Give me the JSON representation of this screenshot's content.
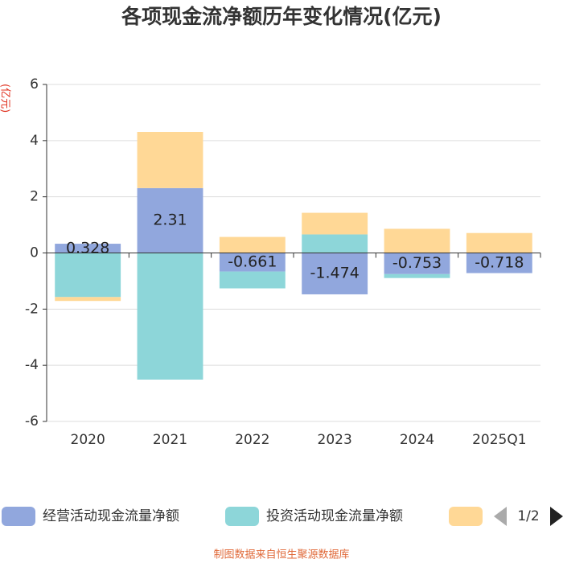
{
  "chart_data": {
    "type": "bar",
    "stacked": true,
    "title": "各项现金流净额历年变化情况(亿元)",
    "y_label": "(亿元)",
    "categories": [
      "2020",
      "2021",
      "2022",
      "2023",
      "2024",
      "2025Q1"
    ],
    "series": [
      {
        "name": "经营活动现金流量净额",
        "color": "#91a7dd",
        "values": [
          0.328,
          2.31,
          -0.661,
          -1.474,
          -0.753,
          -0.718
        ],
        "labels": true
      },
      {
        "name": "投资活动现金流量净额",
        "color": "#8dd6d9",
        "values": [
          -1.57,
          -4.51,
          -0.6,
          0.66,
          -0.14,
          0
        ]
      },
      {
        "color": "#ffd896",
        "values": [
          -0.14,
          2.0,
          0.57,
          0.77,
          0.86,
          0.71
        ]
      }
    ],
    "ylim": [
      -6,
      6
    ],
    "yticks": [
      -6,
      -4,
      -2,
      0,
      2,
      4,
      6
    ],
    "grid": true,
    "legend_page": "1/2",
    "source": "制图数据来自恒生聚源数据库"
  }
}
